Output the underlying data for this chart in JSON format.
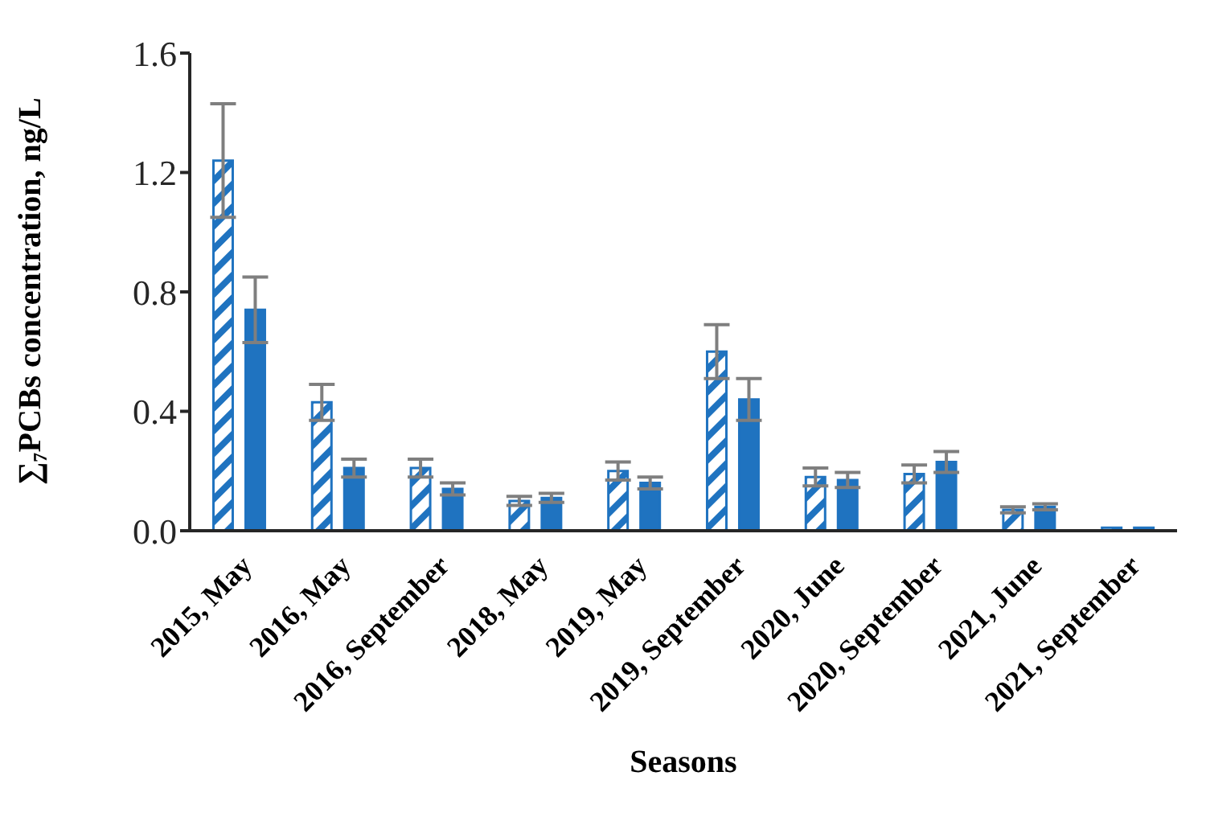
{
  "chart_data": {
    "type": "bar",
    "xlabel": "Seasons",
    "ylabel": "∑₇PCBs concentration, ng/L",
    "categories": [
      "2015, May",
      "2016, May",
      "2016, September",
      "2018, May",
      "2019, May",
      "2019, September",
      "2020, June",
      "2020, September",
      "2021, June",
      "2021, September"
    ],
    "series": [
      {
        "color": "#1f73c0",
        "values": [
          1.24,
          0.43,
          0.21,
          0.1,
          0.2,
          0.6,
          0.18,
          0.19,
          0.07,
          0.01
        ],
        "errors": [
          0.19,
          0.06,
          0.03,
          0.015,
          0.03,
          0.09,
          0.03,
          0.03,
          0.01,
          null
        ]
      },
      {
        "color": "#1f73c0",
        "values": [
          0.74,
          0.21,
          0.14,
          0.11,
          0.16,
          0.44,
          0.17,
          0.23,
          0.08,
          0.01
        ],
        "errors": [
          0.11,
          0.03,
          0.02,
          0.015,
          0.02,
          0.07,
          0.025,
          0.035,
          0.01,
          null
        ]
      }
    ],
    "ylim": [
      0,
      1.6
    ],
    "yticks": [
      {
        "value": 0,
        "label": "0.0"
      },
      {
        "value": 0.4,
        "label": "0.4"
      },
      {
        "value": 0.8,
        "label": "0.8"
      },
      {
        "value": 1.2,
        "label": "1.2"
      },
      {
        "value": 1.6,
        "label": "1.6"
      }
    ],
    "grid": false,
    "legend": false
  }
}
